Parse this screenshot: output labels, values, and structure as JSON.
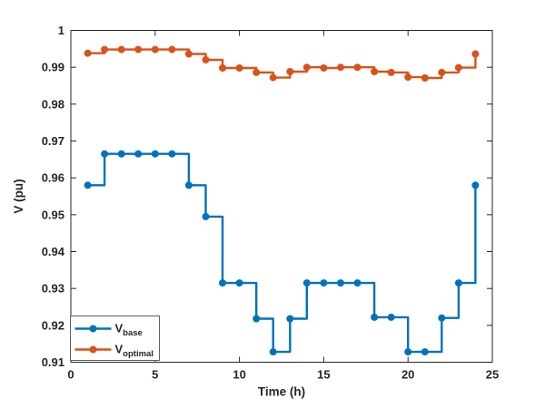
{
  "figure": {
    "background": "#ffffff",
    "axis_color": "#262626",
    "legend_border_color": "#5f5f5f"
  },
  "chart_data": {
    "type": "line",
    "subtype": "stairs",
    "title": "",
    "xlabel": "Time (h)",
    "ylabel": "V (pu)",
    "xlim": [
      0,
      25
    ],
    "ylim": [
      0.91,
      1.0
    ],
    "xticks": [
      0,
      5,
      10,
      15,
      20,
      25
    ],
    "xtick_labels": [
      "0",
      "5",
      "10",
      "15",
      "20",
      "25"
    ],
    "yticks": [
      0.91,
      0.92,
      0.93,
      0.94,
      0.95,
      0.96,
      0.97,
      0.98,
      0.99,
      1.0
    ],
    "ytick_labels": [
      "0.91",
      "0.92",
      "0.93",
      "0.94",
      "0.95",
      "0.96",
      "0.97",
      "0.98",
      "0.99",
      "1"
    ],
    "grid": false,
    "marker": "circle",
    "marker_radius": 4,
    "line_width": 2.4,
    "legend": {
      "position": "bottom-left",
      "border": true
    },
    "x": [
      1,
      2,
      3,
      4,
      5,
      6,
      7,
      8,
      9,
      10,
      11,
      12,
      13,
      14,
      15,
      16,
      17,
      18,
      19,
      20,
      21,
      22,
      23,
      24
    ],
    "series": [
      {
        "name": "V_base",
        "label_main": "V",
        "label_sub": "base",
        "color": "#0072BD",
        "values": [
          0.958,
          0.9665,
          0.9665,
          0.9665,
          0.9665,
          0.9665,
          0.958,
          0.9495,
          0.9315,
          0.9315,
          0.9218,
          0.9128,
          0.9218,
          0.9315,
          0.9315,
          0.9315,
          0.9315,
          0.9222,
          0.9222,
          0.9128,
          0.9128,
          0.922,
          0.9315,
          0.958
        ]
      },
      {
        "name": "V_optimal",
        "label_main": "V",
        "label_sub": "optimal",
        "color": "#D95319",
        "values": [
          0.9938,
          0.9948,
          0.9948,
          0.9948,
          0.9948,
          0.9948,
          0.9936,
          0.992,
          0.9898,
          0.9898,
          0.9886,
          0.9872,
          0.9888,
          0.99,
          0.9898,
          0.99,
          0.99,
          0.9888,
          0.9886,
          0.9873,
          0.9871,
          0.9886,
          0.9899,
          0.9936
        ]
      }
    ]
  }
}
